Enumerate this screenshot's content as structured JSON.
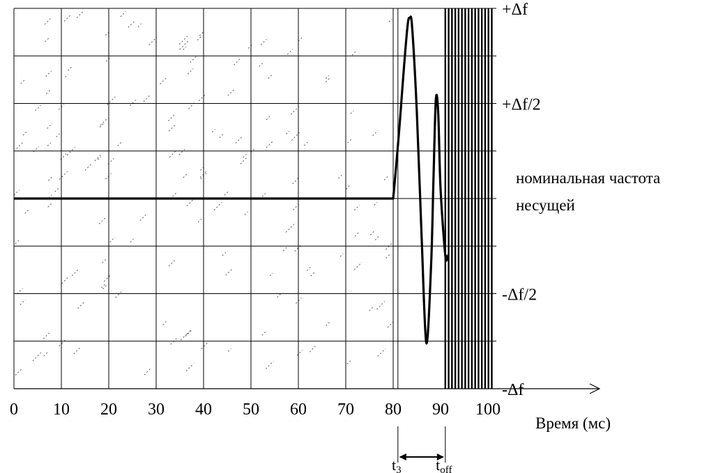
{
  "chart_data": {
    "type": "line",
    "xlabel": "Время (мс)",
    "x_ticks": [
      "0",
      "10",
      "20",
      "30",
      "40",
      "50",
      "60",
      "70",
      "80",
      "90",
      "100"
    ],
    "xlim": [
      0,
      100
    ],
    "y_labels": [
      {
        "value": 1,
        "text": "+Δf"
      },
      {
        "value": 0.5,
        "text": "+Δf/2"
      },
      {
        "value": -0.5,
        "text": "-Δf/2"
      },
      {
        "value": -1,
        "text": "-Δf"
      }
    ],
    "ylim": [
      -1,
      1
    ],
    "grid": true,
    "annotation": [
      "номинальная частота",
      "несущей"
    ],
    "markers": [
      {
        "base": "t",
        "sub": "3",
        "x": 81
      },
      {
        "base": "t",
        "sub": "off",
        "x": 91
      }
    ],
    "hatched_region": {
      "x_start": 91,
      "x_end": 101
    },
    "series": [
      {
        "x": [
          0,
          80,
          81,
          82,
          83,
          83.5,
          84,
          85,
          86,
          87,
          88,
          88.5,
          89,
          89.5,
          90,
          91,
          91.5
        ],
        "y": [
          0,
          0,
          0.25,
          0.6,
          0.9,
          0.95,
          0.9,
          0.45,
          -0.2,
          -0.76,
          -0.35,
          0.1,
          0.52,
          0.45,
          0.05,
          -0.3,
          -0.3
        ]
      }
    ],
    "colors": {
      "line": "#000000",
      "grid": "#000000",
      "hatch": "#555555"
    }
  }
}
